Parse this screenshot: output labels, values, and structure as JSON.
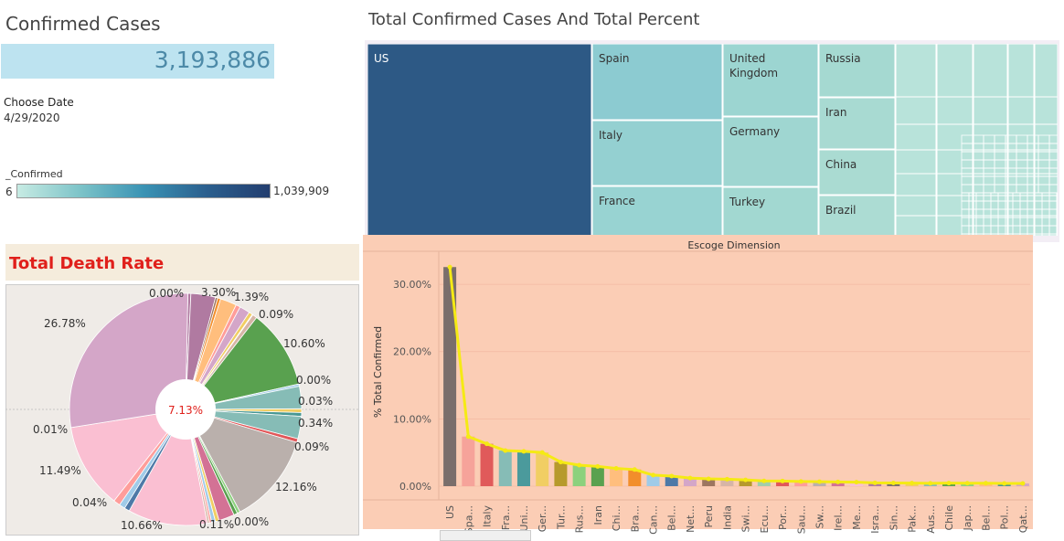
{
  "confirmed_cases": {
    "title": "Confirmed Cases",
    "value": "3,193,886"
  },
  "filter": {
    "label": "Choose Date",
    "value": "4/29/2020"
  },
  "color_legend": {
    "title": "_Confirmed",
    "min": "6",
    "max": "1,039,909"
  },
  "death_rate": {
    "title": "Total Death Rate",
    "center_value": "7.13%"
  },
  "colors": {
    "treemap_us": "#2d5985",
    "treemap_light": "#b3e0d8",
    "bar_panel_bg": "#fbcdb5",
    "line": "#f5ea14",
    "title_red": "#e0201b"
  },
  "chart_data": [
    {
      "type": "treemap",
      "title": "Total Confirmed Cases And Total Percent",
      "labeled_cells": [
        "US",
        "Spain",
        "Italy",
        "France",
        "United Kingdom",
        "Germany",
        "Turkey",
        "Russia",
        "Iran",
        "China",
        "Brazil"
      ]
    },
    {
      "type": "bar",
      "header": "Escoge Dimension",
      "ylabel": "% Total Confirmed",
      "ylim": [
        0,
        33
      ],
      "yticks": [
        "0.00%",
        "10.00%",
        "20.00%",
        "30.00%"
      ],
      "categories": [
        "US",
        "Spa...",
        "Italy",
        "Fra...",
        "Uni...",
        "Ger...",
        "Tur...",
        "Rus...",
        "Iran",
        "Chi...",
        "Bra...",
        "Can...",
        "Bel...",
        "Net...",
        "Peru",
        "India",
        "Swi...",
        "Ecu...",
        "Por...",
        "Sau...",
        "Sw...",
        "Irel...",
        "Me...",
        "Isra...",
        "Sin...",
        "Pak...",
        "Aus...",
        "Chile",
        "Jap...",
        "Bel...",
        "Pol...",
        "Qat..."
      ],
      "values": [
        32.56,
        7.37,
        6.29,
        5.29,
        5.17,
        5.01,
        3.59,
        3.12,
        2.93,
        2.64,
        2.47,
        1.64,
        1.5,
        1.21,
        1.08,
        1.04,
        0.93,
        0.78,
        0.77,
        0.69,
        0.67,
        0.63,
        0.59,
        0.5,
        0.48,
        0.46,
        0.42,
        0.45,
        0.44,
        0.44,
        0.4,
        0.4
      ],
      "bar_colors": [
        "#7a6e6b",
        "#f6a39a",
        "#e05a5a",
        "#86bcb6",
        "#4b9a9c",
        "#f1ce63",
        "#b69a2c",
        "#8cd17d",
        "#59a14f",
        "#ffbe7d",
        "#f28e2b",
        "#a0cbe8",
        "#4e79a7",
        "#d4a6c8",
        "#9d7660",
        "#d7b5a6",
        "#b6992d",
        "#a2ceaa",
        "#e15759",
        "#ff9d9a",
        "#bab0ac",
        "#d37295",
        "#fabfd2",
        "#b07aa1",
        "#79706e",
        "#f1ce63",
        "#86bcb6",
        "#59a14f",
        "#8cd17d",
        "#ffbe7d",
        "#499894",
        "#d4a6c8"
      ],
      "line": "values"
    },
    {
      "type": "pie",
      "title": "Total Death Rate",
      "center_label": "7.13%",
      "slice_labels": [
        "0.00%",
        "3.30%",
        "1.39%",
        "0.09%",
        "10.60%",
        "0.00%",
        "0.03%",
        "0.34%",
        "0.09%",
        "12.16%",
        "0.00%",
        "0.11%",
        "10.66%",
        "0.04%",
        "11.49%",
        "0.01%",
        "26.78%"
      ],
      "slices": [
        {
          "value": 0.4,
          "color": "#b07aa1"
        },
        {
          "value": 3.3,
          "color": "#b07aa1"
        },
        {
          "value": 0.3,
          "color": "#9d7660"
        },
        {
          "value": 0.4,
          "color": "#f28e2b"
        },
        {
          "value": 2.2,
          "color": "#ffbe7d"
        },
        {
          "value": 0.6,
          "color": "#ff9d9a"
        },
        {
          "value": 1.39,
          "color": "#d4a6c8"
        },
        {
          "value": 0.5,
          "color": "#f1ce63"
        },
        {
          "value": 0.09,
          "color": "#b6992d"
        },
        {
          "value": 0.6,
          "color": "#d7b5a6"
        },
        {
          "value": 10.6,
          "color": "#59a14f"
        },
        {
          "value": 0.3,
          "color": "#a0cbe8"
        },
        {
          "value": 3.0,
          "color": "#86bcb6"
        },
        {
          "value": 0.5,
          "color": "#f1ce63"
        },
        {
          "value": 0.5,
          "color": "#499894"
        },
        {
          "value": 3.0,
          "color": "#86bcb6"
        },
        {
          "value": 0.5,
          "color": "#e15759"
        },
        {
          "value": 12.16,
          "color": "#bab0ac"
        },
        {
          "value": 0.4,
          "color": "#8cd17d"
        },
        {
          "value": 0.5,
          "color": "#59a14f"
        },
        {
          "value": 2.1,
          "color": "#d37295"
        },
        {
          "value": 0.5,
          "color": "#f1ce63"
        },
        {
          "value": 0.5,
          "color": "#a0cbe8"
        },
        {
          "value": 0.3,
          "color": "#ff9d9a"
        },
        {
          "value": 0.3,
          "color": "#d7b5a6"
        },
        {
          "value": 10.66,
          "color": "#fabfd2"
        },
        {
          "value": 0.7,
          "color": "#4e79a7"
        },
        {
          "value": 0.8,
          "color": "#a0cbe8"
        },
        {
          "value": 0.9,
          "color": "#ff9d9a"
        },
        {
          "value": 11.49,
          "color": "#fabfd2"
        },
        {
          "value": 26.78,
          "color": "#d4a6c8"
        }
      ]
    }
  ]
}
